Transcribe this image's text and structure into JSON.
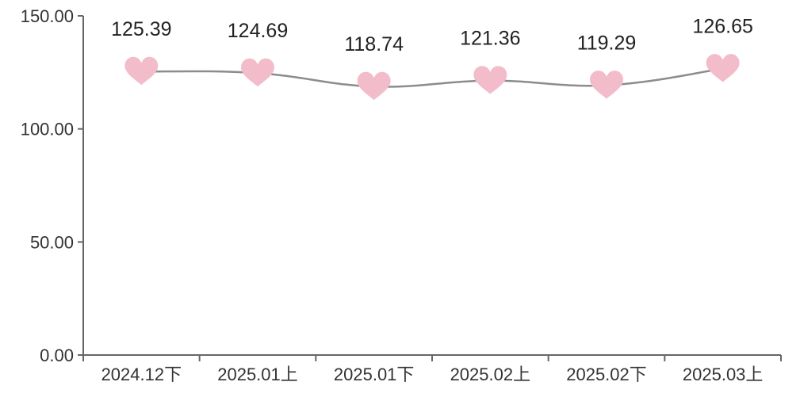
{
  "chart_data": {
    "type": "line",
    "categories": [
      "2024.12下",
      "2025.01上",
      "2025.01下",
      "2025.02上",
      "2025.02下",
      "2025.03上"
    ],
    "values": [
      125.39,
      124.69,
      118.74,
      121.36,
      119.29,
      126.65
    ],
    "value_labels": [
      "125.39",
      "124.69",
      "118.74",
      "121.36",
      "119.29",
      "126.65"
    ],
    "ylim": [
      0,
      150
    ],
    "yticks": [
      0,
      50,
      100,
      150
    ],
    "ytick_labels": [
      "0.00",
      "50.00",
      "100.00",
      "150.00"
    ],
    "marker": "heart-icon",
    "line_color": "#8c8c8c",
    "marker_color": "#f2bccb",
    "axis_color": "#666666",
    "grid": false,
    "legend": "none"
  }
}
